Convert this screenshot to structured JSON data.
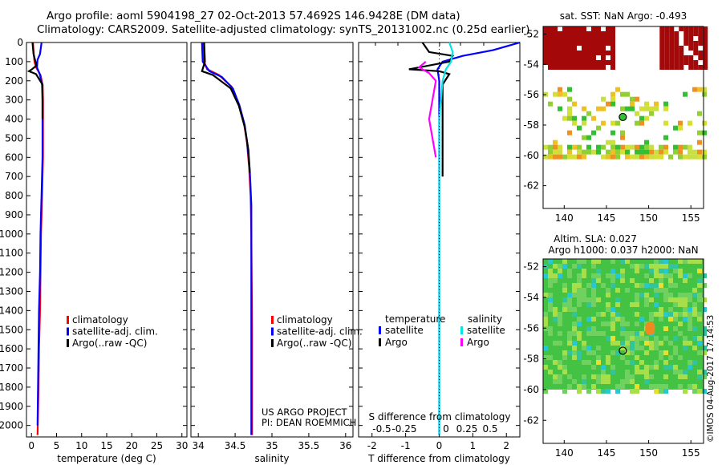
{
  "titles": {
    "line1": "Argo profile: aoml 5904198_27 02-Oct-2013 57.4692S 146.9428E (DM data)",
    "line2": "Climatology: CARS2009. Satellite-adjusted climatology: synTS_20131002.nc (0.25d earlier)"
  },
  "colors": {
    "clim": "#ff0000",
    "sat": "#0000ff",
    "argo": "#000000",
    "sat_s": "#00e5e5",
    "argo_s": "#ff00ff"
  },
  "project": {
    "line1": "US ARGO PROJECT",
    "line2": "PI: DEAN ROEMMICH"
  },
  "stamp": "©IMOS 04-Aug-2017 17:14:53",
  "chart_data": [
    {
      "type": "line",
      "name": "temperature",
      "xlabel": "temperature (deg C)",
      "ylabel": "",
      "xlim": [
        -1,
        31
      ],
      "ylim": [
        2060,
        0
      ],
      "xticks": [
        0,
        5,
        10,
        15,
        20,
        25,
        30
      ],
      "yticks": [
        0,
        100,
        200,
        300,
        400,
        500,
        600,
        700,
        800,
        900,
        1000,
        1100,
        1200,
        1300,
        1400,
        1500,
        1600,
        1700,
        1800,
        1900,
        2000
      ],
      "legend": [
        "climatology",
        "satellite-adj. clim.",
        "Argo(..raw -QC)"
      ],
      "series": [
        {
          "name": "climatology",
          "x": [
            0.3,
            0.4,
            0.6,
            0.9,
            1.8,
            2.2,
            2.3,
            2.3,
            2.3,
            2.3,
            2.2,
            2.1,
            2.0,
            1.9,
            1.8,
            1.7,
            1.5,
            1.4,
            1.2
          ],
          "y": [
            0,
            50,
            100,
            130,
            170,
            220,
            300,
            400,
            500,
            600,
            700,
            800,
            900,
            1000,
            1200,
            1400,
            1600,
            1800,
            2050
          ]
        },
        {
          "name": "satellite-adj. clim.",
          "x": [
            2.0,
            1.7,
            1.2,
            1.1,
            1.7,
            2.1,
            2.2,
            2.2,
            2.2,
            2.1,
            2.0,
            1.9,
            1.8,
            1.7,
            1.5,
            1.4,
            1.3,
            1.2
          ],
          "y": [
            0,
            60,
            90,
            130,
            170,
            220,
            300,
            400,
            600,
            700,
            800,
            900,
            1000,
            1200,
            1400,
            1600,
            1800,
            2000
          ]
        },
        {
          "name": "Argo(..raw -QC)",
          "x": [
            0.2,
            0.4,
            0.7,
            1.0,
            0.1,
            -0.5,
            0.9,
            2.2,
            2.2,
            2.2
          ],
          "y": [
            0,
            60,
            90,
            120,
            140,
            150,
            165,
            220,
            300,
            400
          ]
        }
      ]
    },
    {
      "type": "line",
      "name": "salinity",
      "xlabel": "salinity",
      "xlim": [
        33.9,
        36.1
      ],
      "ylim": [
        2060,
        0
      ],
      "xticks": [
        34,
        34.5,
        35,
        35.5,
        36
      ],
      "legend": [
        "climatology",
        "satellite-adj. clim.",
        "Argo(..raw -QC)"
      ],
      "series": [
        {
          "name": "climatology",
          "x": [
            34.07,
            34.08,
            34.12,
            34.28,
            34.45,
            34.55,
            34.62,
            34.66,
            34.69,
            34.71,
            34.72,
            34.73,
            34.73
          ],
          "y": [
            0,
            100,
            140,
            170,
            230,
            320,
            420,
            520,
            650,
            800,
            1000,
            1500,
            2050
          ]
        },
        {
          "name": "satellite-adj. clim.",
          "x": [
            34.05,
            34.06,
            34.15,
            34.32,
            34.47,
            34.56,
            34.63,
            34.67,
            34.7,
            34.72,
            34.72,
            34.72
          ],
          "y": [
            0,
            100,
            150,
            180,
            240,
            330,
            430,
            540,
            680,
            850,
            1200,
            2050
          ]
        },
        {
          "name": "Argo(..raw -QC)",
          "x": [
            34.08,
            34.09,
            34.05,
            34.2,
            34.44,
            34.55,
            34.63,
            34.68,
            34.7
          ],
          "y": [
            0,
            100,
            150,
            170,
            240,
            330,
            440,
            560,
            680
          ]
        }
      ]
    },
    {
      "type": "line",
      "name": "difference",
      "xlabel": "T difference from climatology",
      "top_axis_label": "S difference from climatology",
      "xlim": [
        -2.4,
        2.4
      ],
      "ylim": [
        2060,
        0
      ],
      "xticks": [
        -2,
        -1,
        0,
        1,
        2
      ],
      "top_ticks": [
        "-0.5",
        "-0.25",
        "0",
        "0.25",
        "0.5"
      ],
      "legend_headers": [
        "temperature",
        "salinity"
      ],
      "legend": [
        "satellite",
        "Argo",
        "satellite",
        "Argo"
      ],
      "series": [
        {
          "name": "temperature satellite",
          "x": [
            2.4,
            1.6,
            0.7,
            0.1,
            -0.05,
            0.0,
            0.0,
            0.0,
            0.0
          ],
          "y": [
            0,
            40,
            70,
            100,
            140,
            200,
            500,
            1000,
            2050
          ]
        },
        {
          "name": "temperature Argo",
          "x": [
            -0.5,
            -0.3,
            0.4,
            0.3,
            -0.9,
            0.0,
            0.3,
            0.1,
            0.1,
            0.1
          ],
          "y": [
            0,
            50,
            70,
            100,
            140,
            150,
            165,
            220,
            500,
            700
          ]
        },
        {
          "name": "salinity satellite",
          "x": [
            0.3,
            0.4,
            0.35,
            0.2,
            0.1,
            0.0,
            0.0,
            0.0
          ],
          "y": [
            0,
            50,
            100,
            140,
            200,
            400,
            1000,
            2050
          ]
        },
        {
          "name": "salinity Argo",
          "x": [
            -0.4,
            -0.6,
            -0.3,
            -0.1,
            -0.2,
            -0.3,
            -0.1
          ],
          "y": [
            100,
            130,
            160,
            200,
            300,
            400,
            600
          ]
        }
      ]
    },
    {
      "type": "heatmap",
      "name": "sst",
      "title": "sat. SST: NaN Argo: -0.493",
      "xlim": [
        137.5,
        156.5
      ],
      "ylim": [
        -63.5,
        -51.5
      ],
      "xticks": [
        140,
        145,
        150,
        155
      ],
      "yticks": [
        -52,
        -54,
        -56,
        -58,
        -60,
        -62
      ]
    },
    {
      "type": "heatmap",
      "name": "sla",
      "title_line1": "Altim. SLA: 0.027",
      "title_line2": "Argo h1000: 0.037 h2000: NaN",
      "xlim": [
        137.5,
        156.5
      ],
      "ylim": [
        -63.5,
        -51.5
      ],
      "xticks": [
        140,
        145,
        150,
        155
      ],
      "yticks": [
        -52,
        -54,
        -56,
        -58,
        -60,
        -62
      ]
    }
  ]
}
